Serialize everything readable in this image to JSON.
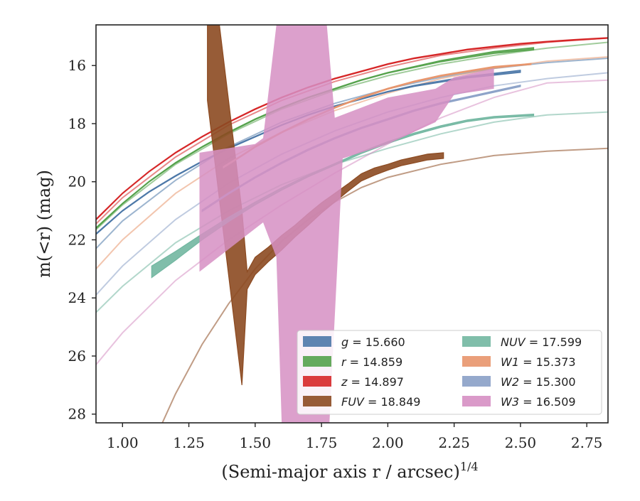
{
  "chart_data": {
    "type": "line",
    "title": "",
    "xlabel": "(Semi-major axis r / arcsec)",
    "xlabel_exponent": "1/4",
    "ylabel": "m(<r) (mag)",
    "xlim": [
      0.9,
      2.83
    ],
    "ylim": [
      28.3,
      14.6
    ],
    "y_inverted": true,
    "x_ticks": [
      1.0,
      1.25,
      1.5,
      1.75,
      2.0,
      2.25,
      2.5,
      2.75
    ],
    "x_tick_labels": [
      "1.00",
      "1.25",
      "1.50",
      "1.75",
      "2.00",
      "2.25",
      "2.50",
      "2.75"
    ],
    "y_ticks": [
      16,
      18,
      20,
      22,
      24,
      26,
      28
    ],
    "y_tick_labels": [
      "16",
      "18",
      "20",
      "22",
      "24",
      "26",
      "28"
    ],
    "grid": false,
    "legend_position": "lower-right",
    "legend_columns": 2,
    "series": [
      {
        "name": "g = 15.660",
        "italic_var": "g",
        "value_text": "= 15.660",
        "color": "#4c78a8",
        "measured": {
          "x": [
            0.9,
            1.0,
            1.1,
            1.2,
            1.3,
            1.4,
            1.5,
            1.6,
            1.7,
            1.8,
            1.9,
            2.0,
            2.1,
            2.2,
            2.3,
            2.4,
            2.5
          ],
          "y": [
            21.8,
            21.0,
            20.35,
            19.8,
            19.3,
            18.85,
            18.45,
            18.05,
            17.7,
            17.4,
            17.15,
            16.9,
            16.7,
            16.55,
            16.4,
            16.3,
            16.2
          ],
          "width": [
            0.04,
            0.03,
            0.03,
            0.03,
            0.03,
            0.03,
            0.03,
            0.03,
            0.03,
            0.03,
            0.03,
            0.03,
            0.04,
            0.05,
            0.06,
            0.07,
            0.08
          ]
        },
        "model": {
          "x": [
            0.9,
            1.0,
            1.2,
            1.4,
            1.6,
            1.8,
            2.0,
            2.2,
            2.4,
            2.6,
            2.83
          ],
          "y": [
            22.3,
            21.35,
            19.95,
            18.8,
            17.95,
            17.3,
            16.8,
            16.4,
            16.1,
            15.9,
            15.75
          ]
        }
      },
      {
        "name": "r = 14.859",
        "italic_var": "r",
        "value_text": "= 14.859",
        "color": "#54a24b",
        "measured": {
          "x": [
            0.9,
            1.0,
            1.1,
            1.2,
            1.3,
            1.4,
            1.5,
            1.6,
            1.7,
            1.8,
            1.9,
            2.0,
            2.1,
            2.2,
            2.3,
            2.4,
            2.55
          ],
          "y": [
            21.6,
            20.75,
            20.0,
            19.35,
            18.8,
            18.3,
            17.85,
            17.45,
            17.1,
            16.8,
            16.5,
            16.25,
            16.05,
            15.85,
            15.7,
            15.55,
            15.42
          ],
          "width": [
            0.04,
            0.03,
            0.03,
            0.03,
            0.03,
            0.03,
            0.03,
            0.03,
            0.03,
            0.03,
            0.03,
            0.03,
            0.04,
            0.05,
            0.06,
            0.07,
            0.08
          ]
        },
        "model": {
          "x": [
            0.9,
            1.0,
            1.2,
            1.4,
            1.6,
            1.8,
            2.0,
            2.2,
            2.4,
            2.6,
            2.83
          ],
          "y": [
            21.65,
            20.8,
            19.4,
            18.35,
            17.5,
            16.85,
            16.35,
            15.95,
            15.65,
            15.4,
            15.2
          ]
        }
      },
      {
        "name": "z = 14.897",
        "italic_var": "z",
        "value_text": "= 14.897",
        "color": "#d62728",
        "measured": {
          "x": [
            0.9,
            1.0,
            1.1,
            1.2,
            1.3,
            1.4,
            1.5,
            1.6,
            1.7,
            1.8,
            1.9,
            2.0,
            2.1,
            2.2,
            2.3,
            2.4,
            2.5,
            2.6,
            2.7,
            2.83
          ],
          "y": [
            21.3,
            20.4,
            19.65,
            19.0,
            18.45,
            17.95,
            17.5,
            17.1,
            16.75,
            16.45,
            16.2,
            15.95,
            15.75,
            15.6,
            15.45,
            15.35,
            15.25,
            15.18,
            15.12,
            15.05
          ],
          "width": [
            0.04,
            0.03,
            0.03,
            0.03,
            0.03,
            0.03,
            0.03,
            0.03,
            0.03,
            0.03,
            0.03,
            0.03,
            0.03,
            0.03,
            0.03,
            0.03,
            0.03,
            0.03,
            0.03,
            0.03
          ]
        },
        "model": {
          "x": [
            0.9,
            1.0,
            1.2,
            1.4,
            1.6,
            1.8,
            2.0,
            2.2,
            2.4,
            2.6,
            2.83
          ],
          "y": [
            21.45,
            20.55,
            19.15,
            18.05,
            17.2,
            16.55,
            16.05,
            15.65,
            15.4,
            15.2,
            15.05
          ]
        }
      },
      {
        "name": "FUV = 18.849",
        "italic_var": "FUV",
        "value_text": "= 18.849",
        "color": "#8c4a21",
        "measured": {
          "x": [
            1.32,
            1.45,
            1.47,
            1.5,
            1.55,
            1.6,
            1.65,
            1.7,
            1.75,
            1.8,
            1.85,
            1.9,
            1.95,
            2.0,
            2.05,
            2.1,
            2.15,
            2.21
          ],
          "y": [
            14.2,
            24.0,
            23.4,
            22.9,
            22.5,
            22.1,
            21.7,
            21.3,
            20.9,
            20.55,
            20.2,
            19.85,
            19.65,
            19.5,
            19.35,
            19.25,
            19.15,
            19.1
          ],
          "width": [
            6.0,
            6.0,
            0.6,
            0.6,
            0.5,
            0.5,
            0.4,
            0.4,
            0.35,
            0.3,
            0.25,
            0.25,
            0.25,
            0.2,
            0.2,
            0.2,
            0.2,
            0.2
          ]
        },
        "model": {
          "x": [
            1.15,
            1.2,
            1.3,
            1.4,
            1.5,
            1.6,
            1.7,
            1.8,
            1.9,
            2.0,
            2.2,
            2.4,
            2.6,
            2.83
          ],
          "y": [
            28.3,
            27.3,
            25.6,
            24.2,
            23.0,
            22.05,
            21.3,
            20.7,
            20.2,
            19.85,
            19.4,
            19.1,
            18.95,
            18.85
          ]
        }
      },
      {
        "name": "NUV = 17.599",
        "italic_var": "NUV",
        "value_text": "= 17.599",
        "color": "#72b7a1",
        "measured": {
          "x": [
            1.11,
            1.2,
            1.3,
            1.4,
            1.5,
            1.6,
            1.7,
            1.8,
            1.9,
            2.0,
            2.1,
            2.2,
            2.3,
            2.4,
            2.55
          ],
          "y": [
            23.1,
            22.55,
            21.9,
            21.3,
            20.75,
            20.25,
            19.8,
            19.4,
            19.0,
            18.65,
            18.35,
            18.1,
            17.9,
            17.78,
            17.7
          ],
          "width": [
            0.4,
            0.3,
            0.2,
            0.15,
            0.1,
            0.08,
            0.06,
            0.06,
            0.06,
            0.06,
            0.06,
            0.06,
            0.06,
            0.06,
            0.06
          ]
        },
        "model": {
          "x": [
            0.9,
            1.0,
            1.2,
            1.4,
            1.6,
            1.8,
            2.0,
            2.2,
            2.4,
            2.6,
            2.83
          ],
          "y": [
            24.5,
            23.6,
            22.1,
            21.0,
            20.1,
            19.4,
            18.85,
            18.35,
            17.95,
            17.7,
            17.6
          ]
        }
      },
      {
        "name": "W1 = 15.373",
        "italic_var": "W1",
        "value_text": "= 15.373",
        "color": "#e8956b",
        "measured": {
          "x": [
            1.38,
            1.45,
            1.5,
            1.6,
            1.7,
            1.8,
            1.9,
            2.0,
            2.1,
            2.2,
            2.3,
            2.4,
            2.54
          ],
          "y": [
            19.5,
            19.1,
            18.8,
            18.3,
            17.85,
            17.45,
            17.1,
            16.8,
            16.55,
            16.35,
            16.2,
            16.05,
            15.95
          ],
          "width": [
            0.05,
            0.04,
            0.04,
            0.04,
            0.04,
            0.04,
            0.04,
            0.04,
            0.04,
            0.04,
            0.04,
            0.04,
            0.04
          ]
        },
        "model": {
          "x": [
            0.9,
            1.0,
            1.2,
            1.4,
            1.6,
            1.8,
            2.0,
            2.2,
            2.4,
            2.6,
            2.83
          ],
          "y": [
            23.0,
            22.0,
            20.4,
            19.2,
            18.3,
            17.55,
            16.95,
            16.45,
            16.1,
            15.85,
            15.7
          ]
        }
      },
      {
        "name": "W2 = 15.300",
        "italic_var": "W2",
        "value_text": "= 15.300",
        "color": "#8aa0c7",
        "measured": {
          "x": [
            1.3,
            1.4,
            1.5,
            1.6,
            1.7,
            1.8,
            1.9,
            2.0,
            2.1,
            2.2,
            2.3,
            2.4,
            2.5
          ],
          "y": [
            21.0,
            20.4,
            19.85,
            19.35,
            18.9,
            18.5,
            18.15,
            17.85,
            17.55,
            17.3,
            17.1,
            16.9,
            16.7
          ],
          "width": [
            0.06,
            0.05,
            0.05,
            0.05,
            0.05,
            0.05,
            0.05,
            0.05,
            0.05,
            0.05,
            0.05,
            0.05,
            0.05
          ]
        },
        "model": {
          "x": [
            0.9,
            1.0,
            1.2,
            1.4,
            1.6,
            1.8,
            2.0,
            2.2,
            2.4,
            2.6,
            2.83
          ],
          "y": [
            23.9,
            22.9,
            21.3,
            20.05,
            19.05,
            18.25,
            17.6,
            17.1,
            16.7,
            16.45,
            16.25
          ]
        }
      },
      {
        "name": "W3 = 16.509",
        "italic_var": "W3",
        "value_text": "= 16.509",
        "color": "#d68fc3",
        "measured_band": {
          "upper": {
            "x": [
              1.29,
              1.5,
              1.53,
              1.58,
              1.6,
              1.7,
              1.77,
              1.8,
              2.0,
              2.18,
              2.25,
              2.4
            ],
            "y": [
              19.0,
              18.7,
              18.5,
              14.6,
              14.6,
              14.6,
              14.6,
              17.8,
              17.1,
              16.8,
              16.4,
              16.1
            ]
          },
          "lower": {
            "x": [
              2.4,
              2.25,
              2.18,
              2.0,
              1.83,
              1.78,
              1.6,
              1.58,
              1.53,
              1.29
            ],
            "y": [
              16.8,
              17.0,
              17.95,
              18.7,
              19.2,
              28.3,
              28.3,
              22.6,
              21.4,
              23.1
            ]
          }
        },
        "model": {
          "x": [
            0.9,
            1.0,
            1.2,
            1.4,
            1.6,
            1.8,
            2.0,
            2.2,
            2.4,
            2.6,
            2.83
          ],
          "y": [
            26.3,
            25.2,
            23.4,
            22.0,
            20.8,
            19.7,
            18.7,
            17.8,
            17.1,
            16.6,
            16.5
          ]
        }
      }
    ]
  }
}
